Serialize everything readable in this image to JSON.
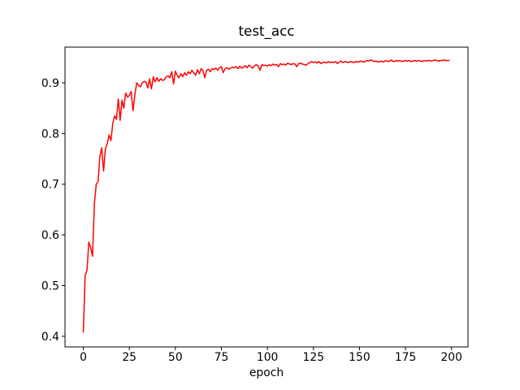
{
  "chart_data": {
    "type": "line",
    "title": "test_acc",
    "x_label": "epoch",
    "x": [
      0,
      1,
      2,
      3,
      4,
      5,
      6,
      7,
      8,
      9,
      10,
      11,
      12,
      13,
      14,
      15,
      16,
      17,
      18,
      19,
      20,
      21,
      22,
      23,
      24,
      25,
      26,
      27,
      28,
      29,
      30,
      31,
      32,
      33,
      34,
      35,
      36,
      37,
      38,
      39,
      40,
      41,
      42,
      43,
      44,
      45,
      46,
      47,
      48,
      49,
      50,
      51,
      52,
      53,
      54,
      55,
      56,
      57,
      58,
      59,
      60,
      61,
      62,
      63,
      64,
      65,
      66,
      67,
      68,
      69,
      70,
      71,
      72,
      73,
      74,
      75,
      76,
      77,
      78,
      79,
      80,
      81,
      82,
      83,
      84,
      85,
      86,
      87,
      88,
      89,
      90,
      91,
      92,
      93,
      94,
      95,
      96,
      97,
      98,
      99,
      100,
      101,
      102,
      103,
      104,
      105,
      106,
      107,
      108,
      109,
      110,
      111,
      112,
      113,
      114,
      115,
      116,
      117,
      118,
      119,
      120,
      121,
      122,
      123,
      124,
      125,
      126,
      127,
      128,
      129,
      130,
      131,
      132,
      133,
      134,
      135,
      136,
      137,
      138,
      139,
      140,
      141,
      142,
      143,
      144,
      145,
      146,
      147,
      148,
      149,
      150,
      151,
      152,
      153,
      154,
      155,
      156,
      157,
      158,
      159,
      160,
      161,
      162,
      163,
      164,
      165,
      166,
      167,
      168,
      169,
      170,
      171,
      172,
      173,
      174,
      175,
      176,
      177,
      178,
      179,
      180,
      181,
      182,
      183,
      184,
      185,
      186,
      187,
      188,
      189,
      190,
      191,
      192,
      193,
      194,
      195,
      196,
      197,
      198,
      199
    ],
    "series": [
      {
        "color": "#ff0000",
        "values": [
          0.407,
          0.52,
          0.53,
          0.586,
          0.575,
          0.558,
          0.66,
          0.7,
          0.705,
          0.755,
          0.772,
          0.726,
          0.77,
          0.78,
          0.797,
          0.786,
          0.82,
          0.835,
          0.828,
          0.868,
          0.826,
          0.866,
          0.85,
          0.88,
          0.872,
          0.875,
          0.883,
          0.845,
          0.877,
          0.9,
          0.895,
          0.892,
          0.9,
          0.903,
          0.902,
          0.89,
          0.908,
          0.888,
          0.912,
          0.902,
          0.91,
          0.903,
          0.908,
          0.905,
          0.906,
          0.912,
          0.914,
          0.91,
          0.922,
          0.898,
          0.923,
          0.915,
          0.91,
          0.918,
          0.912,
          0.92,
          0.915,
          0.922,
          0.918,
          0.925,
          0.92,
          0.915,
          0.926,
          0.918,
          0.928,
          0.924,
          0.91,
          0.925,
          0.927,
          0.922,
          0.928,
          0.926,
          0.929,
          0.925,
          0.93,
          0.932,
          0.92,
          0.928,
          0.93,
          0.927,
          0.929,
          0.931,
          0.93,
          0.932,
          0.928,
          0.933,
          0.929,
          0.931,
          0.934,
          0.93,
          0.935,
          0.932,
          0.929,
          0.934,
          0.936,
          0.933,
          0.925,
          0.936,
          0.934,
          0.935,
          0.933,
          0.936,
          0.934,
          0.937,
          0.935,
          0.936,
          0.932,
          0.938,
          0.936,
          0.937,
          0.935,
          0.939,
          0.937,
          0.936,
          0.938,
          0.937,
          0.932,
          0.938,
          0.939,
          0.937,
          0.936,
          0.935,
          0.938,
          0.94,
          0.942,
          0.94,
          0.941,
          0.939,
          0.942,
          0.938,
          0.94,
          0.941,
          0.939,
          0.942,
          0.94,
          0.941,
          0.94,
          0.942,
          0.938,
          0.941,
          0.943,
          0.94,
          0.942,
          0.941,
          0.94,
          0.942,
          0.941,
          0.94,
          0.942,
          0.941,
          0.942,
          0.943,
          0.941,
          0.942,
          0.944,
          0.943,
          0.945,
          0.944,
          0.942,
          0.943,
          0.941,
          0.942,
          0.943,
          0.941,
          0.944,
          0.943,
          0.942,
          0.945,
          0.943,
          0.942,
          0.944,
          0.943,
          0.944,
          0.942,
          0.943,
          0.944,
          0.943,
          0.944,
          0.942,
          0.943,
          0.944,
          0.943,
          0.944,
          0.943,
          0.942,
          0.944,
          0.943,
          0.944,
          0.944,
          0.943,
          0.944,
          0.945,
          0.944,
          0.943,
          0.944,
          0.944,
          0.945,
          0.944,
          0.944,
          0.944
        ]
      }
    ],
    "xlim": [
      -9.95,
      208.95
    ],
    "xticks": [
      0,
      25,
      50,
      75,
      100,
      125,
      150,
      175,
      200
    ],
    "ylim": [
      0.379,
      0.9705
    ],
    "yticks": [
      0.4,
      0.5,
      0.6,
      0.7,
      0.8,
      0.9
    ]
  }
}
